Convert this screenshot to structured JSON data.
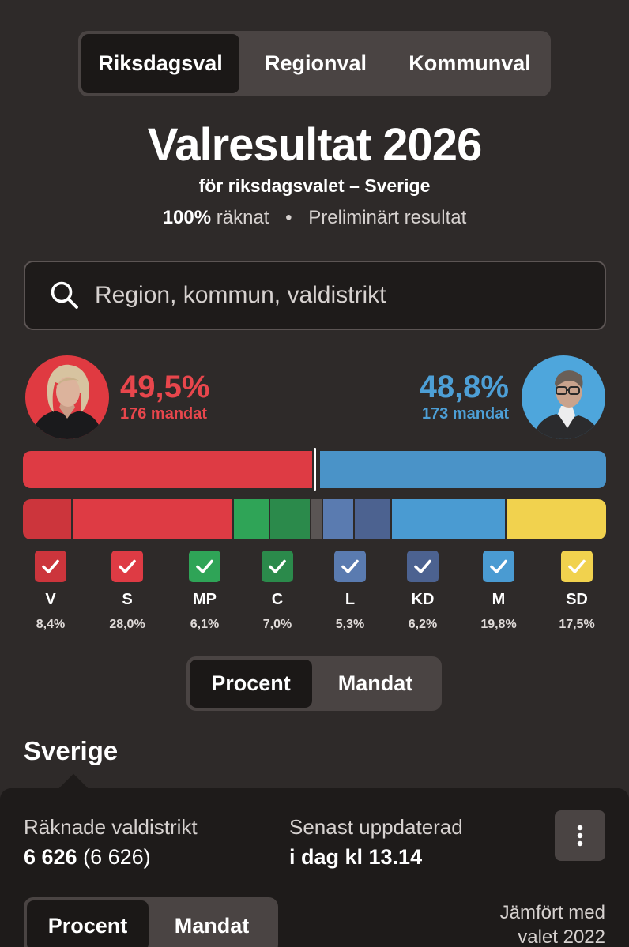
{
  "election_tabs": [
    "Riksdagsval",
    "Regionval",
    "Kommunval"
  ],
  "selected_tab": "Riksdagsval",
  "title": "Valresultat 2026",
  "subtitle": "för riksdagsvalet – Sverige",
  "status": {
    "counted_pct": "100%",
    "counted_label": "räknat",
    "separator": "•",
    "result_label": "Preliminärt resultat"
  },
  "search": {
    "placeholder": "Region, kommun, valdistrikt",
    "icon": "search-icon"
  },
  "blocs": {
    "left": {
      "percent": "49,5%",
      "seats": "176 mandat",
      "value": 49.5,
      "color": "#e03a41"
    },
    "right": {
      "percent": "48,8%",
      "seats": "173 mandat",
      "value": 48.8,
      "color": "#4ea6dc"
    }
  },
  "parties": [
    {
      "abbr": "V",
      "pct": "8,4%",
      "value": 8.4,
      "color": "#cc353c",
      "checked": true
    },
    {
      "abbr": "S",
      "pct": "28,0%",
      "value": 28.0,
      "color": "#de3b44",
      "checked": true
    },
    {
      "abbr": "MP",
      "pct": "6,1%",
      "value": 6.1,
      "color": "#2fa457",
      "checked": true
    },
    {
      "abbr": "C",
      "pct": "7,0%",
      "value": 7.0,
      "color": "#2b8a4b",
      "checked": true
    },
    {
      "abbr": "L",
      "pct": "5,3%",
      "value": 5.3,
      "color": "#5a7bb0",
      "checked": true
    },
    {
      "abbr": "KD",
      "pct": "6,2%",
      "value": 6.2,
      "color": "#4c6290",
      "checked": true
    },
    {
      "abbr": "M",
      "pct": "19,8%",
      "value": 19.8,
      "color": "#4a9bd2",
      "checked": true
    },
    {
      "abbr": "SD",
      "pct": "17,5%",
      "value": 17.5,
      "color": "#f1d24e",
      "checked": true
    }
  ],
  "others_color": "#5a5554",
  "toggle": {
    "options": [
      "Procent",
      "Mandat"
    ],
    "selected": "Procent"
  },
  "region_title": "Sverige",
  "summary": {
    "districts_label": "Räknade valdistrikt",
    "districts_value": "6 626",
    "districts_total": "(6 626)",
    "updated_label": "Senast uppdaterad",
    "updated_value": "i dag kl 13.14",
    "more_icon": "more-vertical-icon",
    "compare_line1": "Jämfört med",
    "compare_line2": "valet 2022"
  }
}
